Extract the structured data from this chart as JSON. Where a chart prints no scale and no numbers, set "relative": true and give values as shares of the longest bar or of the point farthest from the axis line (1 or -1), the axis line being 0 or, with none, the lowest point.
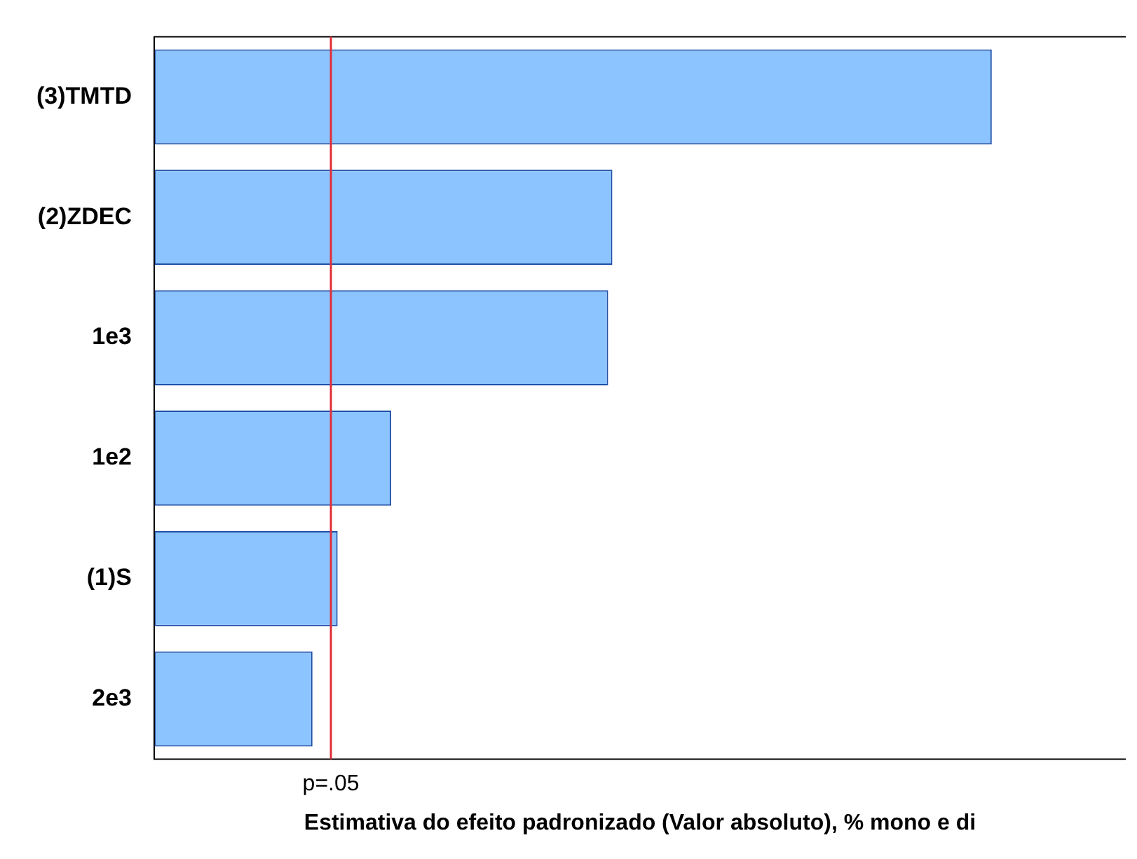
{
  "chart_data": {
    "type": "bar",
    "orientation": "horizontal",
    "relative": true,
    "categories": [
      "(3)TMTD",
      "(2)ZDEC",
      "1e3",
      "1e2",
      "(1)S",
      "2e3"
    ],
    "values": [
      1,
      0.547,
      0.542,
      0.283,
      0.219,
      0.189
    ],
    "color": "#8cc4ff",
    "xlabel": "Estimativa do efeito padronizado (Valor absoluto), % mono e di",
    "ref_lines": [
      {
        "axis": "x",
        "value": 0.211,
        "label": "p=.05",
        "color": "#e0303a"
      }
    ],
    "grid": false,
    "legend": false
  }
}
